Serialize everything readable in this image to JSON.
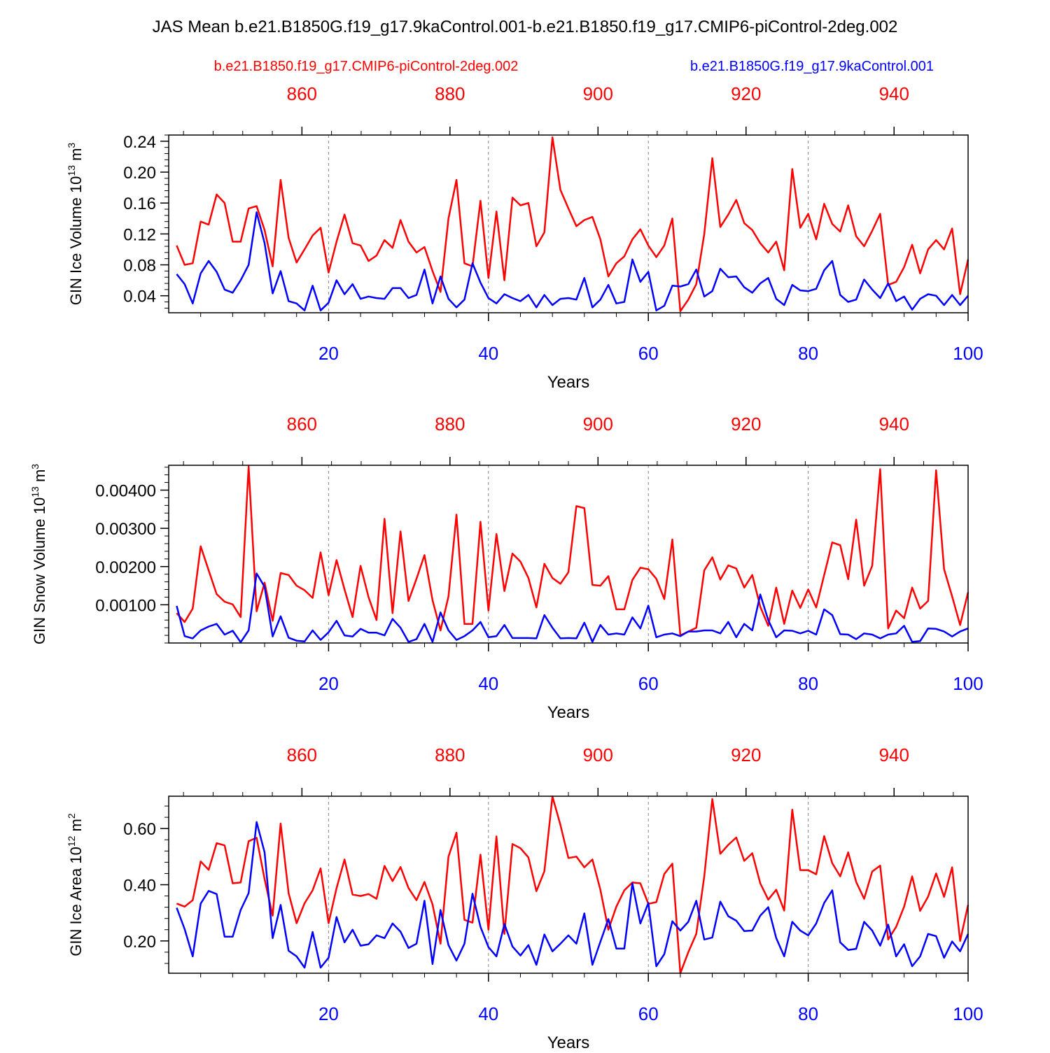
{
  "title": "JAS Mean b.e21.B1850G.f19_g17.9kaControl.001-b.e21.B1850.f19_g17.CMIP6-piControl-2deg.002",
  "legend": {
    "red_case": "b.e21.B1850.f19_g17.CMIP6-piControl-2deg.002",
    "blue_case": "b.e21.B1850G.f19_g17.9kaControl.001"
  },
  "colors": {
    "red": "#ff0000",
    "blue": "#0000ff",
    "axis": "#000000",
    "grid": "#888888"
  },
  "chart_data": [
    {
      "type": "line",
      "ylabel": "GIN Ice Volume 10¹³ m³",
      "ylabel_main": "GIN Ice Volume 10",
      "ylabel_exp": "13",
      "ylabel_unit": " m",
      "ylabel_unit_exp": "3",
      "xlabel": "Years",
      "xlim": [
        0,
        100
      ],
      "top_xlim": [
        842,
        950
      ],
      "ylim": [
        0.018,
        0.248
      ],
      "yticks": [
        0.04,
        0.08,
        0.12,
        0.16,
        0.2,
        0.24
      ],
      "ytick_labels": [
        "0.04",
        "0.08",
        "0.12",
        "0.16",
        "0.20",
        "0.24"
      ],
      "xticks": [
        20,
        40,
        60,
        80,
        100
      ],
      "xtick_labels": [
        "20",
        "40",
        "60",
        "80",
        "100"
      ],
      "top_ticks": [
        860,
        880,
        900,
        920,
        940
      ],
      "top_tick_labels": [
        "860",
        "880",
        "900",
        "920",
        "940"
      ],
      "series": [
        {
          "name": "b.e21.B1850.f19_g17.CMIP6-piControl-2deg.002",
          "color": "#ff0000",
          "values": [
            0.105,
            0.08,
            0.082,
            0.136,
            0.132,
            0.171,
            0.16,
            0.11,
            0.11,
            0.153,
            0.156,
            0.125,
            0.078,
            0.19,
            0.115,
            0.083,
            0.1,
            0.118,
            0.128,
            0.07,
            0.11,
            0.145,
            0.108,
            0.105,
            0.085,
            0.092,
            0.112,
            0.102,
            0.138,
            0.11,
            0.096,
            0.103,
            0.072,
            0.045,
            0.14,
            0.19,
            0.082,
            0.078,
            0.163,
            0.063,
            0.149,
            0.06,
            0.167,
            0.157,
            0.16,
            0.104,
            0.122,
            0.245,
            0.177,
            0.153,
            0.13,
            0.138,
            0.142,
            0.113,
            0.065,
            0.082,
            0.091,
            0.113,
            0.126,
            0.105,
            0.09,
            0.105,
            0.14,
            0.02,
            0.035,
            0.055,
            0.12,
            0.218,
            0.129,
            0.145,
            0.164,
            0.134,
            0.125,
            0.108,
            0.096,
            0.11,
            0.073,
            0.204,
            0.128,
            0.146,
            0.113,
            0.159,
            0.133,
            0.123,
            0.157,
            0.117,
            0.104,
            0.124,
            0.146,
            0.054,
            0.058,
            0.077,
            0.106,
            0.069,
            0.1,
            0.112,
            0.1,
            0.127,
            0.042,
            0.087
          ]
        },
        {
          "name": "b.e21.B1850G.f19_g17.9kaControl.001",
          "color": "#0000ff",
          "values": [
            0.068,
            0.055,
            0.03,
            0.069,
            0.085,
            0.071,
            0.048,
            0.044,
            0.06,
            0.08,
            0.148,
            0.108,
            0.043,
            0.072,
            0.033,
            0.03,
            0.021,
            0.053,
            0.021,
            0.031,
            0.06,
            0.042,
            0.055,
            0.036,
            0.039,
            0.037,
            0.036,
            0.05,
            0.05,
            0.037,
            0.041,
            0.074,
            0.03,
            0.065,
            0.036,
            0.025,
            0.035,
            0.082,
            0.057,
            0.037,
            0.03,
            0.042,
            0.037,
            0.033,
            0.041,
            0.025,
            0.041,
            0.028,
            0.036,
            0.037,
            0.035,
            0.063,
            0.025,
            0.035,
            0.054,
            0.03,
            0.032,
            0.087,
            0.058,
            0.071,
            0.021,
            0.027,
            0.053,
            0.052,
            0.055,
            0.074,
            0.039,
            0.046,
            0.075,
            0.064,
            0.065,
            0.051,
            0.044,
            0.056,
            0.063,
            0.036,
            0.028,
            0.054,
            0.047,
            0.046,
            0.049,
            0.073,
            0.085,
            0.041,
            0.032,
            0.035,
            0.061,
            0.048,
            0.037,
            0.056,
            0.033,
            0.039,
            0.022,
            0.036,
            0.042,
            0.04,
            0.028,
            0.041,
            0.028,
            0.04
          ]
        }
      ]
    },
    {
      "type": "line",
      "ylabel": "GIN Snow Volume 10¹³ m³",
      "ylabel_main": "GIN Snow Volume 10",
      "ylabel_exp": "13",
      "ylabel_unit": " m",
      "ylabel_unit_exp": "3",
      "xlabel": "Years",
      "xlim": [
        0,
        100
      ],
      "top_xlim": [
        842,
        950
      ],
      "ylim": [
        0.0,
        0.00465
      ],
      "yticks": [
        0.001,
        0.002,
        0.003,
        0.004
      ],
      "ytick_labels": [
        "0.00100",
        "0.00200",
        "0.00300",
        "0.00400"
      ],
      "xticks": [
        20,
        40,
        60,
        80,
        100
      ],
      "xtick_labels": [
        "20",
        "40",
        "60",
        "80",
        "100"
      ],
      "top_ticks": [
        860,
        880,
        900,
        920,
        940
      ],
      "top_tick_labels": [
        "860",
        "880",
        "900",
        "920",
        "940"
      ],
      "series": [
        {
          "name": "b.e21.B1850.f19_g17.CMIP6-piControl-2deg.002",
          "color": "#ff0000",
          "values": [
            0.00078,
            0.00055,
            0.0009,
            0.00253,
            0.0019,
            0.00128,
            0.00108,
            0.00101,
            0.00068,
            0.00462,
            0.00083,
            0.00158,
            0.00058,
            0.00183,
            0.00178,
            0.0015,
            0.00138,
            0.00118,
            0.00237,
            0.00125,
            0.00217,
            0.0014,
            0.00068,
            0.00202,
            0.0012,
            0.0006,
            0.00325,
            0.00078,
            0.00292,
            0.0011,
            0.00168,
            0.0023,
            0.00112,
            0.00033,
            0.00122,
            0.00336,
            0.0005,
            0.0005,
            0.00317,
            0.00085,
            0.00285,
            0.00136,
            0.00234,
            0.00213,
            0.0017,
            0.00093,
            0.00207,
            0.0017,
            0.00155,
            0.00185,
            0.00358,
            0.00353,
            0.00152,
            0.0015,
            0.00175,
            0.00088,
            0.00088,
            0.00165,
            0.00197,
            0.00193,
            0.00168,
            0.00115,
            0.00271,
            0.0002,
            0.0003,
            0.0004,
            0.0019,
            0.00224,
            0.00166,
            0.00203,
            0.00195,
            0.00145,
            0.00178,
            0.00095,
            0.00045,
            0.00145,
            0.0005,
            0.00137,
            0.00092,
            0.0014,
            0.00093,
            0.00178,
            0.00263,
            0.00256,
            0.00167,
            0.00323,
            0.0015,
            0.00202,
            0.00455,
            0.00038,
            0.00085,
            0.00065,
            0.00145,
            0.0009,
            0.0011,
            0.00452,
            0.00193,
            0.00122,
            0.00047,
            0.00133
          ]
        },
        {
          "name": "b.e21.B1850G.f19_g17.9kaControl.001",
          "color": "#0000ff",
          "values": [
            0.00097,
            0.00018,
            0.00012,
            0.00033,
            0.00043,
            0.0005,
            0.00022,
            0.00032,
            2e-05,
            0.00033,
            0.00182,
            0.00147,
            0.00017,
            0.0007,
            0.00014,
            6e-05,
            4e-05,
            0.00033,
            8e-05,
            0.00028,
            0.00058,
            0.0002,
            0.00017,
            0.00037,
            0.00027,
            0.00027,
            0.0002,
            0.00063,
            0.0004,
            3e-05,
            0.0001,
            0.0005,
            3e-05,
            0.0008,
            0.00033,
            8e-05,
            0.00018,
            0.00033,
            0.00055,
            0.00015,
            0.00018,
            0.00047,
            0.00013,
            0.00013,
            0.00013,
            0.00012,
            0.00073,
            0.0004,
            0.00012,
            0.00013,
            0.00012,
            0.00053,
            3e-05,
            0.00047,
            0.00022,
            0.00025,
            0.00022,
            0.00067,
            0.00038,
            0.00098,
            0.00015,
            0.00022,
            0.00025,
            0.00018,
            0.0003,
            0.0003,
            0.00033,
            0.00033,
            0.00025,
            0.00055,
            0.00015,
            0.0005,
            0.00033,
            0.00127,
            0.0006,
            0.00015,
            0.00033,
            0.00032,
            0.00025,
            0.00032,
            0.00022,
            0.00088,
            0.00073,
            0.00023,
            0.00022,
            0.0001,
            0.00025,
            0.00022,
            0.00012,
            0.00022,
            0.00025,
            0.00045,
            3e-05,
            5e-05,
            0.00038,
            0.00037,
            0.0003,
            0.00017,
            0.0003,
            0.00038
          ]
        }
      ]
    },
    {
      "type": "line",
      "ylabel": "GIN Ice Area 10¹² m²",
      "ylabel_main": "GIN Ice Area 10",
      "ylabel_exp": "12",
      "ylabel_unit": " m",
      "ylabel_unit_exp": "2",
      "xlabel": "Years",
      "xlim": [
        0,
        100
      ],
      "top_xlim": [
        842,
        950
      ],
      "ylim": [
        0.085,
        0.715
      ],
      "yticks": [
        0.2,
        0.4,
        0.6
      ],
      "ytick_labels": [
        "0.20",
        "0.40",
        "0.60"
      ],
      "xticks": [
        20,
        40,
        60,
        80,
        100
      ],
      "xtick_labels": [
        "20",
        "40",
        "60",
        "80",
        "100"
      ],
      "top_ticks": [
        860,
        880,
        900,
        920,
        940
      ],
      "top_tick_labels": [
        "860",
        "880",
        "900",
        "920",
        "940"
      ],
      "series": [
        {
          "name": "b.e21.B1850.f19_g17.CMIP6-piControl-2deg.002",
          "color": "#ff0000",
          "values": [
            0.333,
            0.322,
            0.345,
            0.483,
            0.453,
            0.548,
            0.54,
            0.405,
            0.408,
            0.555,
            0.567,
            0.42,
            0.29,
            0.618,
            0.37,
            0.263,
            0.334,
            0.38,
            0.458,
            0.263,
            0.388,
            0.49,
            0.365,
            0.36,
            0.367,
            0.35,
            0.467,
            0.413,
            0.463,
            0.388,
            0.345,
            0.41,
            0.33,
            0.19,
            0.5,
            0.585,
            0.275,
            0.265,
            0.507,
            0.24,
            0.572,
            0.225,
            0.545,
            0.53,
            0.497,
            0.377,
            0.448,
            0.714,
            0.613,
            0.495,
            0.5,
            0.462,
            0.49,
            0.382,
            0.24,
            0.322,
            0.38,
            0.408,
            0.405,
            0.332,
            0.338,
            0.438,
            0.475,
            0.085,
            0.16,
            0.225,
            0.43,
            0.705,
            0.51,
            0.542,
            0.568,
            0.485,
            0.512,
            0.405,
            0.347,
            0.382,
            0.308,
            0.667,
            0.452,
            0.452,
            0.437,
            0.573,
            0.477,
            0.43,
            0.515,
            0.41,
            0.35,
            0.447,
            0.468,
            0.205,
            0.25,
            0.322,
            0.43,
            0.307,
            0.358,
            0.44,
            0.357,
            0.462,
            0.2,
            0.328
          ]
        },
        {
          "name": "b.e21.B1850G.f19_g17.9kaControl.001",
          "color": "#0000ff",
          "values": [
            0.318,
            0.242,
            0.145,
            0.333,
            0.378,
            0.367,
            0.215,
            0.215,
            0.31,
            0.37,
            0.623,
            0.515,
            0.21,
            0.328,
            0.165,
            0.145,
            0.105,
            0.232,
            0.105,
            0.14,
            0.285,
            0.195,
            0.24,
            0.183,
            0.188,
            0.22,
            0.21,
            0.262,
            0.233,
            0.175,
            0.19,
            0.343,
            0.118,
            0.31,
            0.185,
            0.13,
            0.19,
            0.368,
            0.25,
            0.178,
            0.145,
            0.26,
            0.18,
            0.148,
            0.185,
            0.115,
            0.223,
            0.163,
            0.19,
            0.22,
            0.19,
            0.298,
            0.115,
            0.197,
            0.278,
            0.173,
            0.173,
            0.405,
            0.262,
            0.335,
            0.11,
            0.153,
            0.27,
            0.237,
            0.268,
            0.343,
            0.205,
            0.212,
            0.34,
            0.288,
            0.272,
            0.235,
            0.237,
            0.29,
            0.32,
            0.21,
            0.145,
            0.268,
            0.237,
            0.22,
            0.262,
            0.335,
            0.38,
            0.195,
            0.168,
            0.172,
            0.268,
            0.237,
            0.183,
            0.258,
            0.145,
            0.188,
            0.11,
            0.145,
            0.225,
            0.217,
            0.14,
            0.198,
            0.163,
            0.225
          ]
        }
      ]
    }
  ]
}
